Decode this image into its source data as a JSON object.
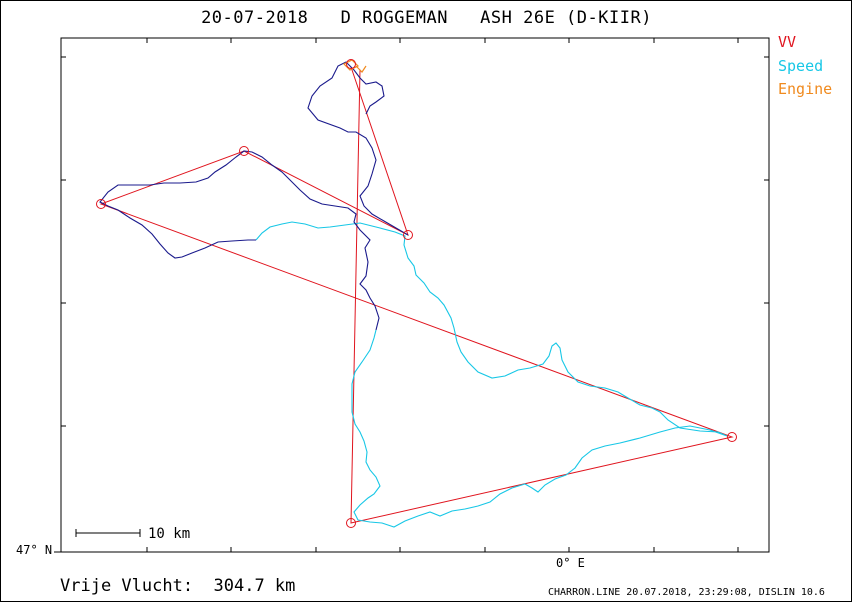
{
  "chart_data": {
    "type": "map-track",
    "title": "20-07-2018   D ROGGEMAN   ASH 26E (D-KIIR)",
    "legend": [
      {
        "label": "VV",
        "color": "#e0141e"
      },
      {
        "label": "Speed",
        "color": "#17c7e6"
      },
      {
        "label": "Engine",
        "color": "#f08a1e"
      }
    ],
    "y_axis_label": "47° N",
    "x_axis_label": "0° E",
    "scale_bar_label": "10 km",
    "distance_text": "Vrije Vlucht:  304.7 km",
    "footer": "CHARRON.LINE 20.07.2018, 23:29:08, DISLIN 10.6",
    "colors": {
      "task": "#e0141e",
      "track_slow": "#17c7e6",
      "track_fast": "#1a1a8c",
      "engine": "#f08a1e"
    }
  }
}
